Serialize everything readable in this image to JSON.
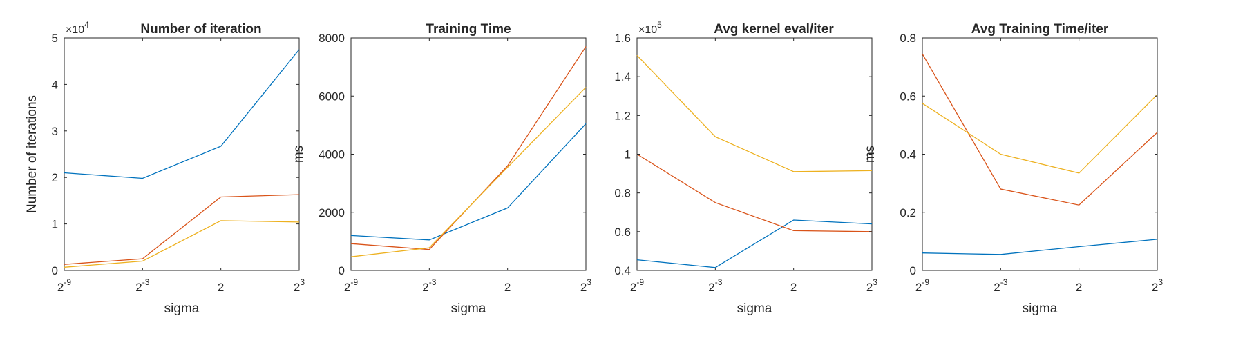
{
  "figure": {
    "background": "#ffffff",
    "series_colors": [
      "#0072BD",
      "#D95319",
      "#EDB120"
    ]
  },
  "chart_data": [
    {
      "type": "line",
      "title": "Number of iteration",
      "xlabel": "sigma",
      "ylabel": "Number of iterations",
      "multiplier": {
        "prefix": "×10",
        "exponent": "4"
      },
      "x_ticks": [
        {
          "base": "2",
          "sup": "-9"
        },
        {
          "base": "2",
          "sup": "-3"
        },
        {
          "base": "2",
          "sup": ""
        },
        {
          "base": "2",
          "sup": "3"
        }
      ],
      "ylim": [
        0,
        5
      ],
      "y_ticks": [
        {
          "value": 0,
          "label": "0"
        },
        {
          "value": 1,
          "label": "1"
        },
        {
          "value": 2,
          "label": "2"
        },
        {
          "value": 3,
          "label": "3"
        },
        {
          "value": 4,
          "label": "4"
        },
        {
          "value": 5,
          "label": "5"
        }
      ],
      "grid": false,
      "series": [
        {
          "color": "#0072BD",
          "values": [
            2.1,
            1.98,
            2.67,
            4.75
          ]
        },
        {
          "color": "#D95319",
          "values": [
            0.13,
            0.25,
            1.58,
            1.63
          ]
        },
        {
          "color": "#EDB120",
          "values": [
            0.07,
            0.2,
            1.07,
            1.04
          ]
        }
      ]
    },
    {
      "type": "line",
      "title": "Training Time",
      "xlabel": "sigma",
      "ylabel": "ms",
      "multiplier": null,
      "x_ticks": [
        {
          "base": "2",
          "sup": "-9"
        },
        {
          "base": "2",
          "sup": "-3"
        },
        {
          "base": "2",
          "sup": ""
        },
        {
          "base": "2",
          "sup": "3"
        }
      ],
      "ylim": [
        0,
        8000
      ],
      "y_ticks": [
        {
          "value": 0,
          "label": "0"
        },
        {
          "value": 2000,
          "label": "2000"
        },
        {
          "value": 4000,
          "label": "4000"
        },
        {
          "value": 6000,
          "label": "6000"
        },
        {
          "value": 8000,
          "label": "8000"
        }
      ],
      "grid": false,
      "series": [
        {
          "color": "#0072BD",
          "values": [
            1200,
            1050,
            2150,
            5050
          ]
        },
        {
          "color": "#D95319",
          "values": [
            920,
            720,
            3600,
            7700
          ]
        },
        {
          "color": "#EDB120",
          "values": [
            470,
            780,
            3550,
            6300
          ]
        }
      ]
    },
    {
      "type": "line",
      "title": "Avg kernel eval/iter",
      "xlabel": "sigma",
      "ylabel": "",
      "multiplier": {
        "prefix": "×10",
        "exponent": "5"
      },
      "x_ticks": [
        {
          "base": "2",
          "sup": "-9"
        },
        {
          "base": "2",
          "sup": "-3"
        },
        {
          "base": "2",
          "sup": ""
        },
        {
          "base": "2",
          "sup": "3"
        }
      ],
      "ylim": [
        0.4,
        1.6
      ],
      "y_ticks": [
        {
          "value": 0.4,
          "label": "0.4"
        },
        {
          "value": 0.6,
          "label": "0.6"
        },
        {
          "value": 0.8,
          "label": "0.8"
        },
        {
          "value": 1.0,
          "label": "1"
        },
        {
          "value": 1.2,
          "label": "1.2"
        },
        {
          "value": 1.4,
          "label": "1.4"
        },
        {
          "value": 1.6,
          "label": "1.6"
        }
      ],
      "grid": false,
      "series": [
        {
          "color": "#0072BD",
          "values": [
            0.455,
            0.415,
            0.66,
            0.64
          ]
        },
        {
          "color": "#D95319",
          "values": [
            1.0,
            0.75,
            0.605,
            0.6
          ]
        },
        {
          "color": "#EDB120",
          "values": [
            1.51,
            1.09,
            0.91,
            0.915
          ]
        }
      ]
    },
    {
      "type": "line",
      "title": "Avg Training Time/iter",
      "xlabel": "sigma",
      "ylabel": "ms",
      "multiplier": null,
      "x_ticks": [
        {
          "base": "2",
          "sup": "-9"
        },
        {
          "base": "2",
          "sup": "-3"
        },
        {
          "base": "2",
          "sup": ""
        },
        {
          "base": "2",
          "sup": "3"
        }
      ],
      "ylim": [
        0,
        0.8
      ],
      "y_ticks": [
        {
          "value": 0,
          "label": "0"
        },
        {
          "value": 0.2,
          "label": "0.2"
        },
        {
          "value": 0.4,
          "label": "0.4"
        },
        {
          "value": 0.6,
          "label": "0.6"
        },
        {
          "value": 0.8,
          "label": "0.8"
        }
      ],
      "grid": false,
      "series": [
        {
          "color": "#0072BD",
          "values": [
            0.06,
            0.055,
            0.082,
            0.107
          ]
        },
        {
          "color": "#D95319",
          "values": [
            0.745,
            0.28,
            0.225,
            0.475
          ]
        },
        {
          "color": "#EDB120",
          "values": [
            0.575,
            0.4,
            0.335,
            0.605
          ]
        }
      ]
    }
  ]
}
